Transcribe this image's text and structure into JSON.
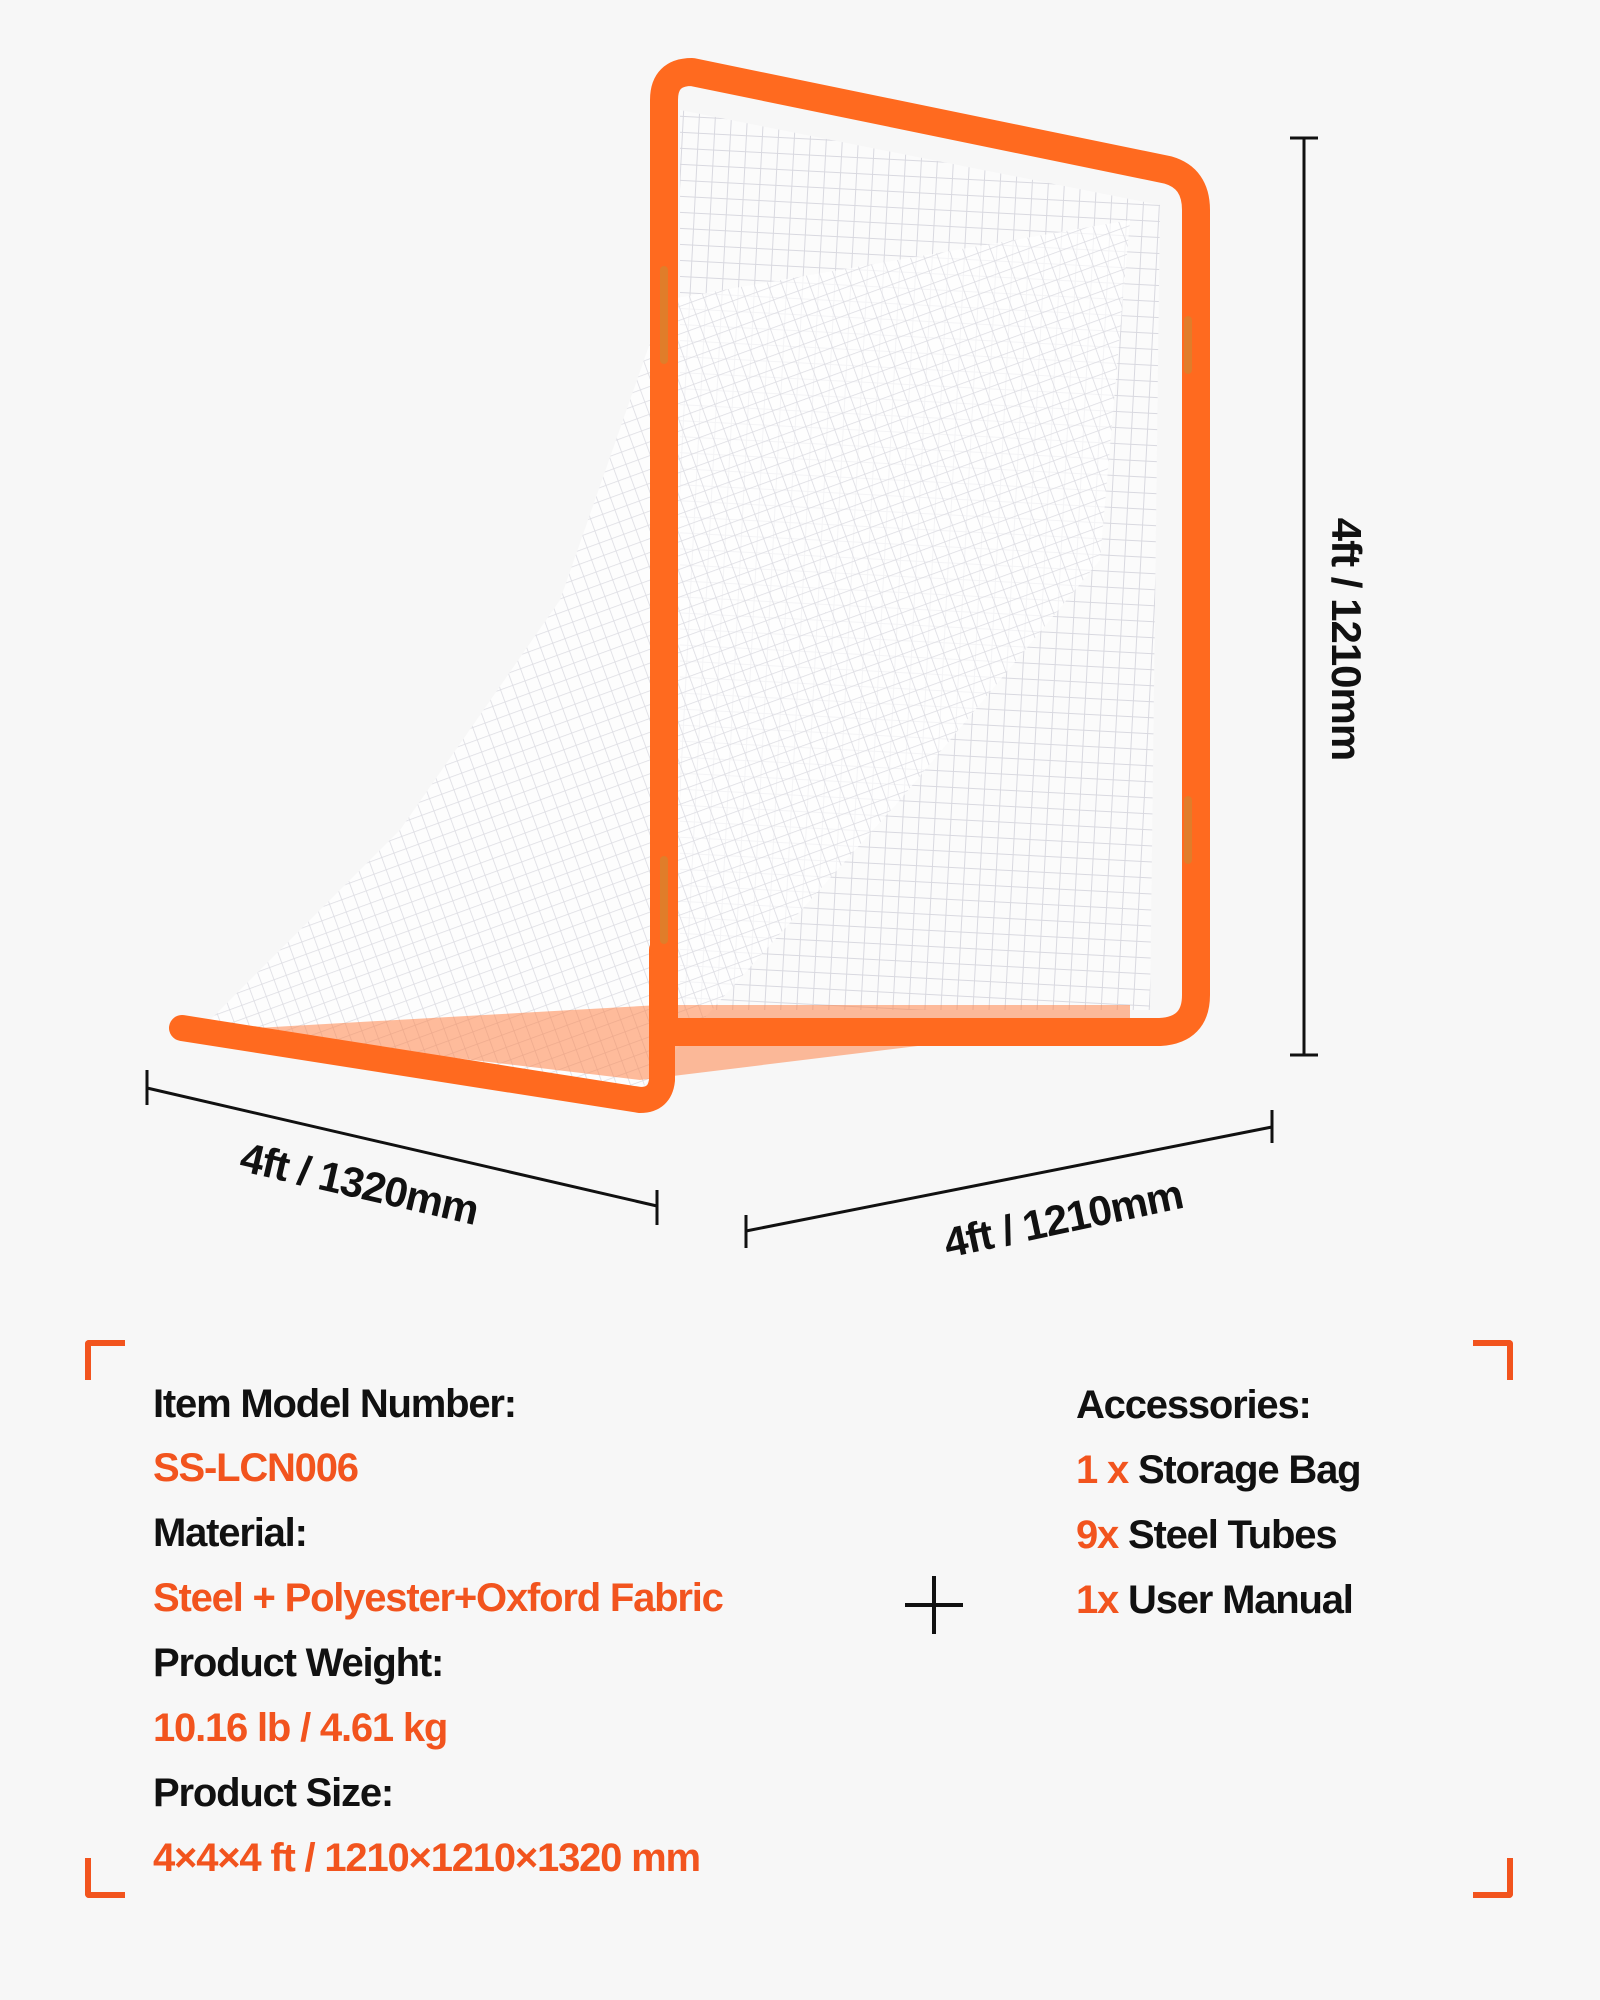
{
  "product_image": {
    "frame_color": "#ff6a1f",
    "net_color": "#ffffff"
  },
  "dimensions": {
    "height_label": "4ft / 1210mm",
    "width_label": "4ft / 1320mm",
    "depth_label": "4ft / 1210mm"
  },
  "specs": {
    "model_label": "Item Model Number:",
    "model_value": "SS-LCN006",
    "material_label": "Material:",
    "material_value": "Steel + Polyester+Oxford Fabric",
    "weight_label": "Product Weight:",
    "weight_value": "10.16 lb / 4.61 kg",
    "size_label": "Product Size:",
    "size_value": "4×4×4 ft / 1210×1210×1320 mm"
  },
  "accessories": {
    "title": "Accessories:",
    "items": [
      {
        "qty": "1 x",
        "name": "Storage Bag"
      },
      {
        "qty": "9x",
        "name": "Steel Tubes"
      },
      {
        "qty": "1x",
        "name": "User Manual"
      }
    ]
  },
  "colors": {
    "accent": "#f2541e",
    "text": "#111111",
    "background": "#f7f7f7"
  }
}
